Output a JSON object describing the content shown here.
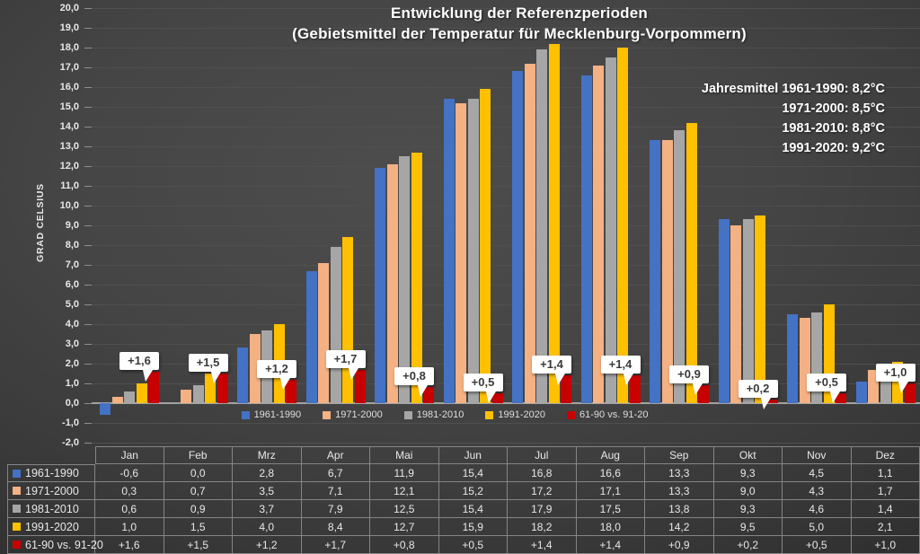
{
  "title": {
    "line1": "Entwicklung der Referenzperioden",
    "line2": "(Gebietsmittel der Temperatur für Mecklenburg-Vorpommern)"
  },
  "y_axis": {
    "label": "GRAD CELSIUS",
    "min": -2,
    "max": 20,
    "step": 1,
    "decimal_separator": ","
  },
  "annotation": {
    "lines": [
      "Jahresmittel 1961-1990: 8,2°C",
      "1971-2000: 8,5°C",
      "1981-2010: 8,8°C",
      "1991-2020: 9,2°C"
    ]
  },
  "chart_data": {
    "type": "bar",
    "title": "Entwicklung der Referenzperioden (Gebietsmittel der Temperatur für Mecklenburg-Vorpommern)",
    "ylabel": "GRAD CELSIUS",
    "ylim": [
      -2,
      20
    ],
    "grid": true,
    "legend_position": "bottom-inside",
    "categories": [
      "Jan",
      "Feb",
      "Mrz",
      "Apr",
      "Mai",
      "Jun",
      "Jul",
      "Aug",
      "Sep",
      "Okt",
      "Nov",
      "Dez"
    ],
    "series": [
      {
        "name": "1961-1990",
        "color": "#4472C4",
        "values": [
          -0.6,
          0.0,
          2.8,
          6.7,
          11.9,
          15.4,
          16.8,
          16.6,
          13.3,
          9.3,
          4.5,
          1.1
        ]
      },
      {
        "name": "1971-2000",
        "color": "#F4B183",
        "values": [
          0.3,
          0.7,
          3.5,
          7.1,
          12.1,
          15.2,
          17.2,
          17.1,
          13.3,
          9.0,
          4.3,
          1.7
        ]
      },
      {
        "name": "1981-2010",
        "color": "#A6A6A6",
        "values": [
          0.6,
          0.9,
          3.7,
          7.9,
          12.5,
          15.4,
          17.9,
          17.5,
          13.8,
          9.3,
          4.6,
          1.4
        ]
      },
      {
        "name": "1991-2020",
        "color": "#FFC000",
        "values": [
          1.0,
          1.5,
          4.0,
          8.4,
          12.7,
          15.9,
          18.2,
          18.0,
          14.2,
          9.5,
          5.0,
          2.1
        ]
      },
      {
        "name": "61-90 vs. 91-20",
        "color": "#C80000",
        "is_difference": true,
        "values": [
          1.6,
          1.5,
          1.2,
          1.7,
          0.8,
          0.5,
          1.4,
          1.4,
          0.9,
          0.2,
          0.5,
          1.0
        ],
        "data_labels": [
          "+1,6",
          "+1,5",
          "+1,2",
          "+1,7",
          "+0,8",
          "+0,5",
          "+1,4",
          "+1,4",
          "+0,9",
          "+0,2",
          "+0,5",
          "+1,0"
        ]
      }
    ]
  },
  "table": {
    "rows": [
      {
        "label": "1961-1990",
        "key_color": "#4472C4",
        "values": [
          "-0,6",
          "0,0",
          "2,8",
          "6,7",
          "11,9",
          "15,4",
          "16,8",
          "16,6",
          "13,3",
          "9,3",
          "4,5",
          "1,1"
        ]
      },
      {
        "label": "1971-2000",
        "key_color": "#F4B183",
        "values": [
          "0,3",
          "0,7",
          "3,5",
          "7,1",
          "12,1",
          "15,2",
          "17,2",
          "17,1",
          "13,3",
          "9,0",
          "4,3",
          "1,7"
        ]
      },
      {
        "label": "1981-2010",
        "key_color": "#A6A6A6",
        "values": [
          "0,6",
          "0,9",
          "3,7",
          "7,9",
          "12,5",
          "15,4",
          "17,9",
          "17,5",
          "13,8",
          "9,3",
          "4,6",
          "1,4"
        ]
      },
      {
        "label": "1991-2020",
        "key_color": "#FFC000",
        "values": [
          "1,0",
          "1,5",
          "4,0",
          "8,4",
          "12,7",
          "15,9",
          "18,2",
          "18,0",
          "14,2",
          "9,5",
          "5,0",
          "2,1"
        ]
      },
      {
        "label": "61-90 vs. 91-20",
        "key_color": "#C80000",
        "values": [
          "+1,6",
          "+1,5",
          "+1,2",
          "+1,7",
          "+0,8",
          "+0,5",
          "+1,4",
          "+1,4",
          "+0,9",
          "+0,2",
          "+0,5",
          "+1,0"
        ]
      }
    ]
  }
}
